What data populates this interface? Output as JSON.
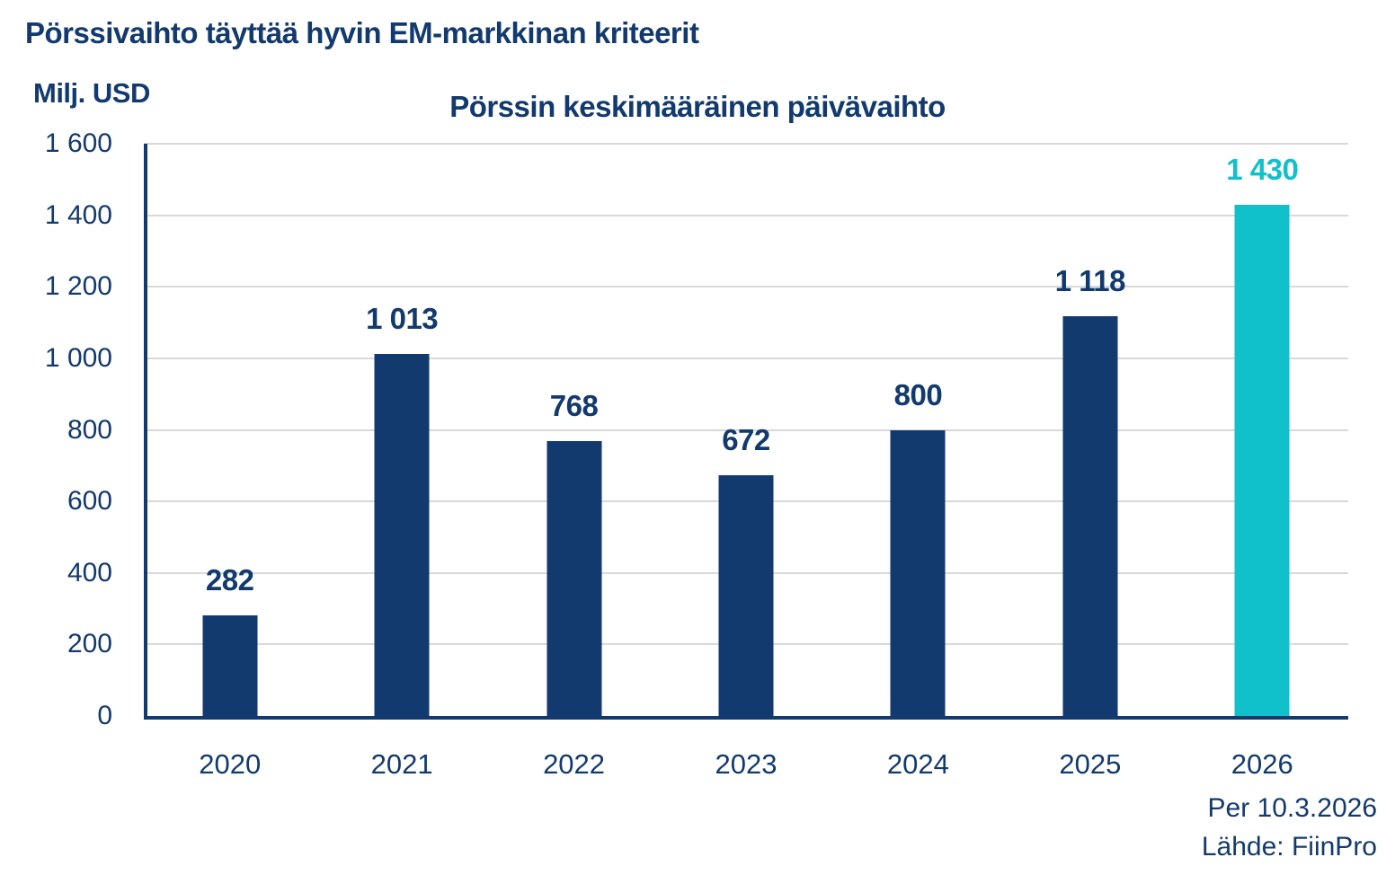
{
  "page": {
    "title": "Pörssivaihto täyttää hyvin EM-markkinan kriteerit"
  },
  "chart_data": {
    "type": "bar",
    "title": "Pörssin keskimääräinen päivävaihto",
    "ylabel": "Milj. USD",
    "xlabel": "",
    "categories": [
      "2020",
      "2021",
      "2022",
      "2023",
      "2024",
      "2025",
      "2026"
    ],
    "values": [
      282,
      1013,
      768,
      672,
      800,
      1118,
      1430
    ],
    "value_labels": [
      "282",
      "1 013",
      "768",
      "672",
      "800",
      "1 118",
      "1 430"
    ],
    "ylim": [
      0,
      1600
    ],
    "ytick_interval": 200,
    "ytick_labels": [
      "0",
      "200",
      "400",
      "600",
      "800",
      "1 000",
      "1 200",
      "1 400",
      "1 600"
    ],
    "grid": true,
    "legend_position": "none",
    "highlight_index": 6,
    "colors": {
      "bar": "#123A6E",
      "bar_highlight": "#10C0CB",
      "text": "#123A6E",
      "gridline": "#D9D9D9",
      "background": "#FFFFFF"
    },
    "annotations": {
      "as_of": "Per 10.3.2026",
      "source": "Lähde: FiinPro"
    }
  }
}
